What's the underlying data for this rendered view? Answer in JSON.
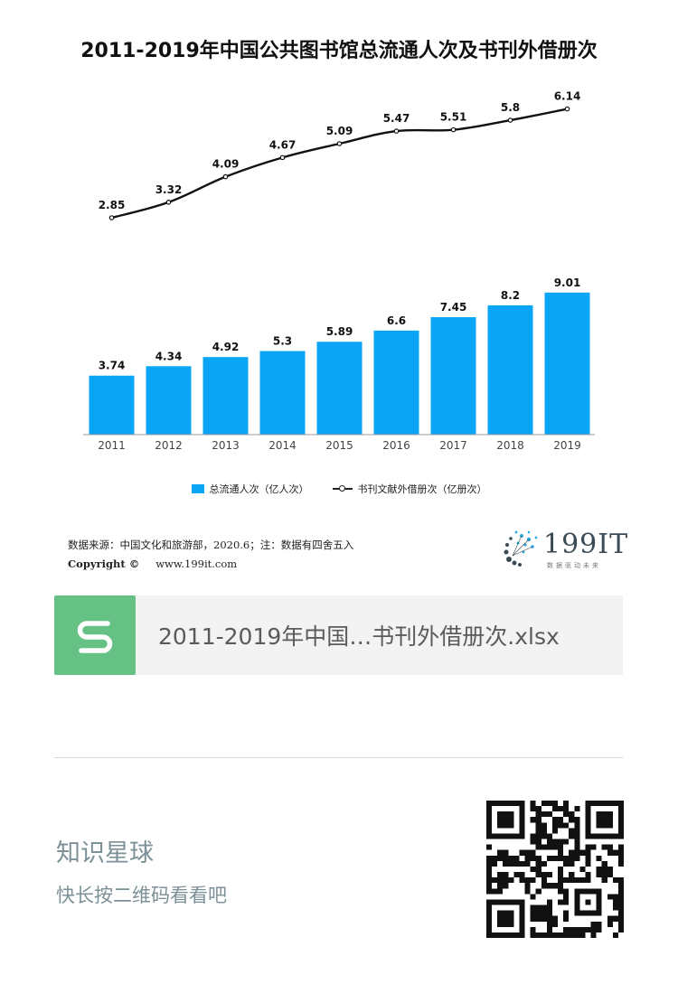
{
  "chart_data": {
    "type": "bar+line",
    "title": "2011-2019年中国公共图书馆总流通人次及书刊外借册次",
    "categories": [
      "2011",
      "2012",
      "2013",
      "2014",
      "2015",
      "2016",
      "2017",
      "2018",
      "2019"
    ],
    "series": [
      {
        "name": "总流通人次（亿人次）",
        "type": "bar",
        "color": "#0aa5f5",
        "values": [
          3.74,
          4.34,
          4.92,
          5.3,
          5.89,
          6.6,
          7.45,
          8.2,
          9.01
        ]
      },
      {
        "name": "书刊文献外借册次（亿册次）",
        "type": "line",
        "color": "#111111",
        "values": [
          2.85,
          3.32,
          4.09,
          4.67,
          5.09,
          5.47,
          5.51,
          5.8,
          6.14
        ]
      }
    ],
    "legend_position": "bottom",
    "grid": false
  },
  "footer": {
    "source_text": "数据来源：中国文化和旅游部，2020.6；注：数据有四舍五入",
    "copyright_label": "Copyright ©",
    "website": "www.199it.com",
    "logo_text": "199IT",
    "logo_subtitle": "数据驱动未来"
  },
  "attachment": {
    "file_name": "2011-2019年中国…书刊外借册次.xlsx",
    "icon_letter": "S",
    "icon_color": "#66c184"
  },
  "promo": {
    "title": "知识星球",
    "hint": "快长按二维码看看吧"
  }
}
